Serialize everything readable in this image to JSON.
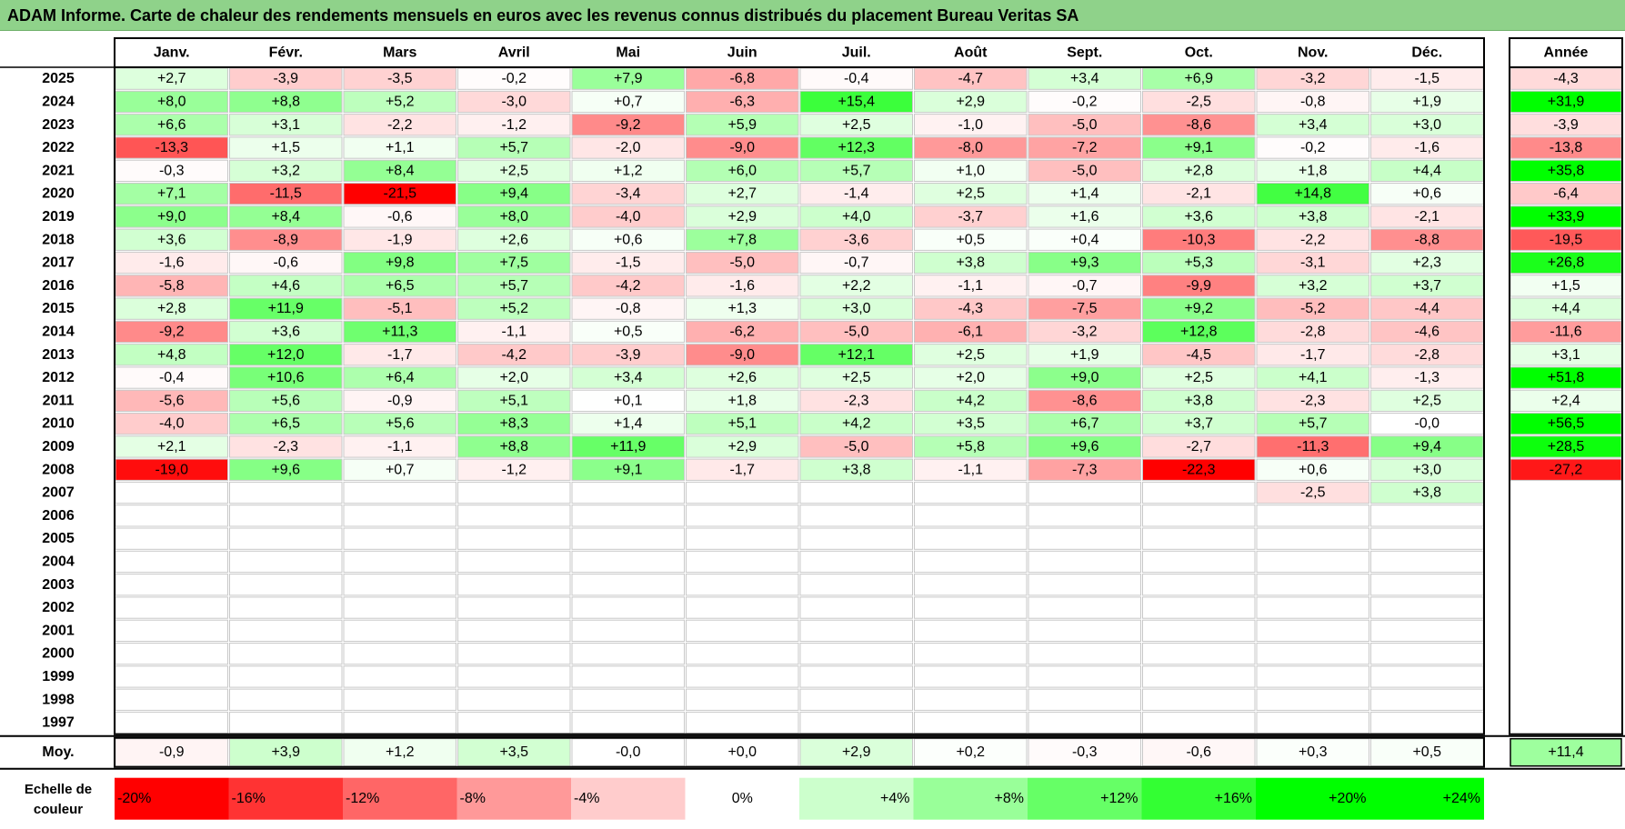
{
  "title": "ADAM Informe. Carte de chaleur des rendements mensuels en euros avec les revenus connus distribués du placement Bureau Veritas SA",
  "chart_data": {
    "type": "heatmap",
    "title": "ADAM Informe. Carte de chaleur des rendements mensuels en euros avec les revenus connus distribués du placement Bureau Veritas SA",
    "columns": [
      "Janv.",
      "Févr.",
      "Mars",
      "Avril",
      "Mai",
      "Juin",
      "Juil.",
      "Août",
      "Sept.",
      "Oct.",
      "Nov.",
      "Déc."
    ],
    "year_column_label": "Année",
    "rows": [
      {
        "year": "2025",
        "values": [
          "+2,7",
          "-3,9",
          "-3,5",
          "-0,2",
          "+7,9",
          "-6,8",
          "-0,4",
          "-4,7",
          "+3,4",
          "+6,9",
          "-3,2",
          "-1,5"
        ],
        "annual": "-4,3"
      },
      {
        "year": "2024",
        "values": [
          "+8,0",
          "+8,8",
          "+5,2",
          "-3,0",
          "+0,7",
          "-6,3",
          "+15,4",
          "+2,9",
          "-0,2",
          "-2,5",
          "-0,8",
          "+1,9"
        ],
        "annual": "+31,9"
      },
      {
        "year": "2023",
        "values": [
          "+6,6",
          "+3,1",
          "-2,2",
          "-1,2",
          "-9,2",
          "+5,9",
          "+2,5",
          "-1,0",
          "-5,0",
          "-8,6",
          "+3,4",
          "+3,0"
        ],
        "annual": "-3,9"
      },
      {
        "year": "2022",
        "values": [
          "-13,3",
          "+1,5",
          "+1,1",
          "+5,7",
          "-2,0",
          "-9,0",
          "+12,3",
          "-8,0",
          "-7,2",
          "+9,1",
          "-0,2",
          "-1,6"
        ],
        "annual": "-13,8"
      },
      {
        "year": "2021",
        "values": [
          "-0,3",
          "+3,2",
          "+8,4",
          "+2,5",
          "+1,2",
          "+6,0",
          "+5,7",
          "+1,0",
          "-5,0",
          "+2,8",
          "+1,8",
          "+4,4"
        ],
        "annual": "+35,8"
      },
      {
        "year": "2020",
        "values": [
          "+7,1",
          "-11,5",
          "-21,5",
          "+9,4",
          "-3,4",
          "+2,7",
          "-1,4",
          "+2,5",
          "+1,4",
          "-2,1",
          "+14,8",
          "+0,6"
        ],
        "annual": "-6,4"
      },
      {
        "year": "2019",
        "values": [
          "+9,0",
          "+8,4",
          "-0,6",
          "+8,0",
          "-4,0",
          "+2,9",
          "+4,0",
          "-3,7",
          "+1,6",
          "+3,6",
          "+3,8",
          "-2,1"
        ],
        "annual": "+33,9"
      },
      {
        "year": "2018",
        "values": [
          "+3,6",
          "-8,9",
          "-1,9",
          "+2,6",
          "+0,6",
          "+7,8",
          "-3,6",
          "+0,5",
          "+0,4",
          "-10,3",
          "-2,2",
          "-8,8"
        ],
        "annual": "-19,5"
      },
      {
        "year": "2017",
        "values": [
          "-1,6",
          "-0,6",
          "+9,8",
          "+7,5",
          "-1,5",
          "-5,0",
          "-0,7",
          "+3,8",
          "+9,3",
          "+5,3",
          "-3,1",
          "+2,3"
        ],
        "annual": "+26,8"
      },
      {
        "year": "2016",
        "values": [
          "-5,8",
          "+4,6",
          "+6,5",
          "+5,7",
          "-4,2",
          "-1,6",
          "+2,2",
          "-1,1",
          "-0,7",
          "-9,9",
          "+3,2",
          "+3,7"
        ],
        "annual": "+1,5"
      },
      {
        "year": "2015",
        "values": [
          "+2,8",
          "+11,9",
          "-5,1",
          "+5,2",
          "-0,8",
          "+1,3",
          "+3,0",
          "-4,3",
          "-7,5",
          "+9,2",
          "-5,2",
          "-4,4"
        ],
        "annual": "+4,4"
      },
      {
        "year": "2014",
        "values": [
          "-9,2",
          "+3,6",
          "+11,3",
          "-1,1",
          "+0,5",
          "-6,2",
          "-5,0",
          "-6,1",
          "-3,2",
          "+12,8",
          "-2,8",
          "-4,6"
        ],
        "annual": "-11,6"
      },
      {
        "year": "2013",
        "values": [
          "+4,8",
          "+12,0",
          "-1,7",
          "-4,2",
          "-3,9",
          "-9,0",
          "+12,1",
          "+2,5",
          "+1,9",
          "-4,5",
          "-1,7",
          "-2,8"
        ],
        "annual": "+3,1"
      },
      {
        "year": "2012",
        "values": [
          "-0,4",
          "+10,6",
          "+6,4",
          "+2,0",
          "+3,4",
          "+2,6",
          "+2,5",
          "+2,0",
          "+9,0",
          "+2,5",
          "+4,1",
          "-1,3"
        ],
        "annual": "+51,8"
      },
      {
        "year": "2011",
        "values": [
          "-5,6",
          "+5,6",
          "-0,9",
          "+5,1",
          "+0,1",
          "+1,8",
          "-2,3",
          "+4,2",
          "-8,6",
          "+3,8",
          "-2,3",
          "+2,5"
        ],
        "annual": "+2,4"
      },
      {
        "year": "2010",
        "values": [
          "-4,0",
          "+6,5",
          "+5,6",
          "+8,3",
          "+1,4",
          "+5,1",
          "+4,2",
          "+3,5",
          "+6,7",
          "+3,7",
          "+5,7",
          "-0,0"
        ],
        "annual": "+56,5"
      },
      {
        "year": "2009",
        "values": [
          "+2,1",
          "-2,3",
          "-1,1",
          "+8,8",
          "+11,9",
          "+2,9",
          "-5,0",
          "+5,8",
          "+9,6",
          "-2,7",
          "-11,3",
          "+9,4"
        ],
        "annual": "+28,5"
      },
      {
        "year": "2008",
        "values": [
          "-19,0",
          "+9,6",
          "+0,7",
          "-1,2",
          "+9,1",
          "-1,7",
          "+3,8",
          "-1,1",
          "-7,3",
          "-22,3",
          "+0,6",
          "+3,0"
        ],
        "annual": "-27,2"
      },
      {
        "year": "2007",
        "values": [
          "",
          "",
          "",
          "",
          "",
          "",
          "",
          "",
          "",
          "",
          "-2,5",
          "+3,8"
        ],
        "annual": ""
      },
      {
        "year": "2006",
        "values": [
          "",
          "",
          "",
          "",
          "",
          "",
          "",
          "",
          "",
          "",
          "",
          ""
        ],
        "annual": ""
      },
      {
        "year": "2005",
        "values": [
          "",
          "",
          "",
          "",
          "",
          "",
          "",
          "",
          "",
          "",
          "",
          ""
        ],
        "annual": ""
      },
      {
        "year": "2004",
        "values": [
          "",
          "",
          "",
          "",
          "",
          "",
          "",
          "",
          "",
          "",
          "",
          ""
        ],
        "annual": ""
      },
      {
        "year": "2003",
        "values": [
          "",
          "",
          "",
          "",
          "",
          "",
          "",
          "",
          "",
          "",
          "",
          ""
        ],
        "annual": ""
      },
      {
        "year": "2002",
        "values": [
          "",
          "",
          "",
          "",
          "",
          "",
          "",
          "",
          "",
          "",
          "",
          ""
        ],
        "annual": ""
      },
      {
        "year": "2001",
        "values": [
          "",
          "",
          "",
          "",
          "",
          "",
          "",
          "",
          "",
          "",
          "",
          ""
        ],
        "annual": ""
      },
      {
        "year": "2000",
        "values": [
          "",
          "",
          "",
          "",
          "",
          "",
          "",
          "",
          "",
          "",
          "",
          ""
        ],
        "annual": ""
      },
      {
        "year": "1999",
        "values": [
          "",
          "",
          "",
          "",
          "",
          "",
          "",
          "",
          "",
          "",
          "",
          ""
        ],
        "annual": ""
      },
      {
        "year": "1998",
        "values": [
          "",
          "",
          "",
          "",
          "",
          "",
          "",
          "",
          "",
          "",
          "",
          ""
        ],
        "annual": ""
      },
      {
        "year": "1997",
        "values": [
          "",
          "",
          "",
          "",
          "",
          "",
          "",
          "",
          "",
          "",
          "",
          ""
        ],
        "annual": ""
      }
    ],
    "average_row": {
      "label": "Moy.",
      "values": [
        "-0,9",
        "+3,9",
        "+1,2",
        "+3,5",
        "-0,0",
        "+0,0",
        "+2,9",
        "+0,2",
        "-0,3",
        "-0,6",
        "+0,3",
        "+0,5"
      ],
      "annual": "+11,4"
    },
    "color_scale": {
      "label": "Echelle de couleur",
      "stops": [
        "-20%",
        "-16%",
        "-12%",
        "-8%",
        "-4%",
        "0%",
        "+4%",
        "+8%",
        "+12%",
        "+16%",
        "+20%",
        "+24%"
      ],
      "negative_color": "#ff0000",
      "neutral_color": "#ffffff",
      "positive_color": "#00ff00"
    }
  }
}
